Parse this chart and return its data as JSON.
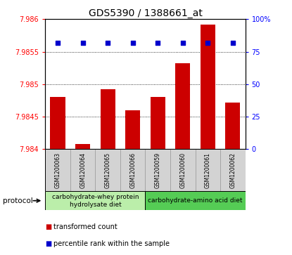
{
  "title": "GDS5390 / 1388661_at",
  "samples": [
    "GSM1200063",
    "GSM1200064",
    "GSM1200065",
    "GSM1200066",
    "GSM1200059",
    "GSM1200060",
    "GSM1200061",
    "GSM1200062"
  ],
  "bar_values": [
    7.9848,
    7.98408,
    7.98492,
    7.9846,
    7.9848,
    7.98532,
    7.98592,
    7.98472
  ],
  "percentile_values": [
    82,
    82,
    82,
    82,
    82,
    82,
    82,
    82
  ],
  "ymin": 7.984,
  "ymax": 7.986,
  "yticks": [
    7.984,
    7.9845,
    7.985,
    7.9855,
    7.986
  ],
  "ytick_labels": [
    "7.984",
    "7.9845",
    "7.985",
    "7.9855",
    "7.986"
  ],
  "right_yticks": [
    0,
    25,
    50,
    75,
    100
  ],
  "right_ytick_labels": [
    "0",
    "25",
    "50",
    "75",
    "100%"
  ],
  "bar_color": "#cc0000",
  "dot_color": "#0000cc",
  "sample_bg_color": "#d3d3d3",
  "groups": [
    {
      "label": "carbohydrate-whey protein\nhydrolysate diet",
      "start": 0,
      "end": 4,
      "color": "#bbeeaa"
    },
    {
      "label": "carbohydrate-amino acid diet",
      "start": 4,
      "end": 8,
      "color": "#55cc55"
    }
  ],
  "protocol_label": "protocol",
  "legend_bar_label": "transformed count",
  "legend_dot_label": "percentile rank within the sample",
  "title_fontsize": 10,
  "tick_fontsize": 7,
  "sample_fontsize": 5.5,
  "proto_fontsize": 6.5,
  "legend_fontsize": 7
}
